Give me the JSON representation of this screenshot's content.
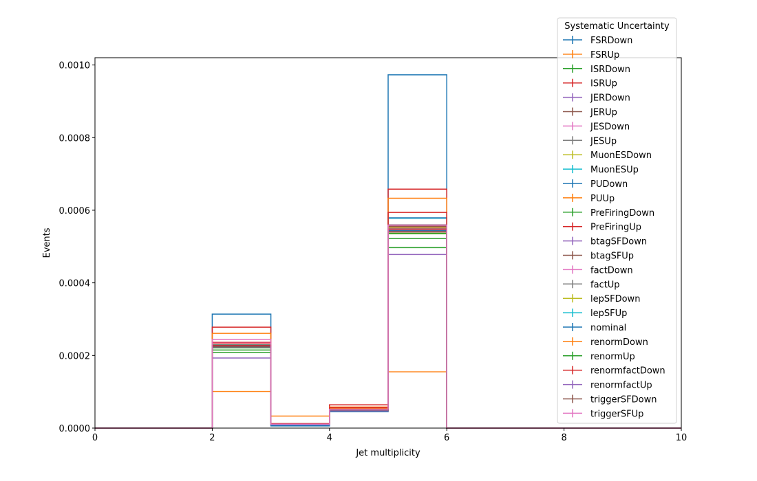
{
  "chart_data": {
    "type": "step-histogram",
    "title": "",
    "xlabel": "Jet multiplicity",
    "ylabel": "Events",
    "xlim": [
      0,
      10
    ],
    "ylim": [
      0,
      0.00102
    ],
    "x_ticks": [
      0,
      2,
      4,
      6,
      8,
      10
    ],
    "y_ticks": [
      0.0,
      0.0002,
      0.0004,
      0.0006,
      0.0008,
      0.001
    ],
    "y_tick_labels": [
      "0.0000",
      "0.0002",
      "0.0004",
      "0.0006",
      "0.0008",
      "0.0010"
    ],
    "grid": false,
    "bin_edges": [
      0,
      1,
      2,
      3,
      4,
      5,
      6,
      7,
      8,
      9,
      10
    ],
    "legend": {
      "title": "Systematic Uncertainty",
      "placement": "upper right"
    },
    "series": [
      {
        "name": "FSRDown",
        "color": "#1f77b4",
        "values": [
          0,
          0,
          0.000314,
          8e-06,
          4.5e-05,
          0.000973,
          0,
          0,
          0,
          0
        ]
      },
      {
        "name": "FSRUp",
        "color": "#ff7f0e",
        "values": [
          0,
          0,
          0.000101,
          3.3e-05,
          5.2e-05,
          0.000155,
          0,
          0,
          0,
          0
        ]
      },
      {
        "name": "ISRDown",
        "color": "#2ca02c",
        "values": [
          0,
          0,
          0.000208,
          1.2e-05,
          4.8e-05,
          0.000497,
          0,
          0,
          0,
          0
        ]
      },
      {
        "name": "ISRUp",
        "color": "#d62728",
        "values": [
          0,
          0,
          0.000278,
          1.1e-05,
          6.4e-05,
          0.000658,
          0,
          0,
          0,
          0
        ]
      },
      {
        "name": "JERDown",
        "color": "#9467bd",
        "values": [
          0,
          0,
          0.000193,
          1e-05,
          4.7e-05,
          0.000478,
          0,
          0,
          0,
          0
        ]
      },
      {
        "name": "JERUp",
        "color": "#8c564b",
        "values": [
          0,
          0,
          0.000222,
          1.1e-05,
          5e-05,
          0.000556,
          0,
          0,
          0,
          0
        ]
      },
      {
        "name": "JESDown",
        "color": "#e377c2",
        "values": [
          0,
          0,
          0.000232,
          1.1e-05,
          5.1e-05,
          0.000545,
          0,
          0,
          0,
          0
        ]
      },
      {
        "name": "JESUp",
        "color": "#7f7f7f",
        "values": [
          0,
          0,
          0.000228,
          1.2e-05,
          4.9e-05,
          0.00056,
          0,
          0,
          0,
          0
        ]
      },
      {
        "name": "MuonESDown",
        "color": "#bcbd22",
        "values": [
          0,
          0,
          0.000226,
          1.1e-05,
          5e-05,
          0.000537,
          0,
          0,
          0,
          0
        ]
      },
      {
        "name": "MuonESUp",
        "color": "#17becf",
        "values": [
          0,
          0,
          0.000229,
          1.1e-05,
          5.1e-05,
          0.000578,
          0,
          0,
          0,
          0
        ]
      },
      {
        "name": "PUDown",
        "color": "#1f77b4",
        "values": [
          0,
          0,
          0.000236,
          6e-06,
          4.9e-05,
          0.000579,
          0,
          0,
          0,
          0
        ]
      },
      {
        "name": "PUUp",
        "color": "#ff7f0e",
        "values": [
          0,
          0,
          0.000261,
          1.1e-05,
          5.8e-05,
          0.000633,
          0,
          0,
          0,
          0
        ]
      },
      {
        "name": "PreFiringDown",
        "color": "#2ca02c",
        "values": [
          0,
          0,
          0.000215,
          1.1e-05,
          4.9e-05,
          0.000522,
          0,
          0,
          0,
          0
        ]
      },
      {
        "name": "PreFiringUp",
        "color": "#d62728",
        "values": [
          0,
          0,
          0.000236,
          1.1e-05,
          5.6e-05,
          0.000594,
          0,
          0,
          0,
          0
        ]
      },
      {
        "name": "btagSFDown",
        "color": "#9467bd",
        "values": [
          0,
          0,
          0.000225,
          1.1e-05,
          5e-05,
          0.00054,
          0,
          0,
          0,
          0
        ]
      },
      {
        "name": "btagSFUp",
        "color": "#8c564b",
        "values": [
          0,
          0,
          0.000221,
          1.1e-05,
          5e-05,
          0.000548,
          0,
          0,
          0,
          0
        ]
      },
      {
        "name": "factDown",
        "color": "#e377c2",
        "values": [
          0,
          0,
          0.000244,
          1.2e-05,
          5.3e-05,
          0.000559,
          0,
          0,
          0,
          0
        ]
      },
      {
        "name": "factUp",
        "color": "#7f7f7f",
        "values": [
          0,
          0,
          0.000226,
          1.1e-05,
          5e-05,
          0.000549,
          0,
          0,
          0,
          0
        ]
      },
      {
        "name": "lepSFDown",
        "color": "#bcbd22",
        "values": [
          0,
          0,
          0.000222,
          1.1e-05,
          4.9e-05,
          0.000535,
          0,
          0,
          0,
          0
        ]
      },
      {
        "name": "lepSFUp",
        "color": "#17becf",
        "values": [
          0,
          0,
          0.00023,
          1.1e-05,
          5.1e-05,
          0.000552,
          0,
          0,
          0,
          0
        ]
      },
      {
        "name": "nominal",
        "color": "#1f77b4",
        "values": [
          0,
          0,
          0.000226,
          1.1e-05,
          5e-05,
          0.000544,
          0,
          0,
          0,
          0
        ]
      },
      {
        "name": "renormDown",
        "color": "#ff7f0e",
        "values": [
          0,
          0,
          0.000232,
          1.2e-05,
          5.4e-05,
          0.000553,
          0,
          0,
          0,
          0
        ]
      },
      {
        "name": "renormUp",
        "color": "#2ca02c",
        "values": [
          0,
          0,
          0.000221,
          1e-05,
          4.8e-05,
          0.000536,
          0,
          0,
          0,
          0
        ]
      },
      {
        "name": "renormfactDown",
        "color": "#d62728",
        "values": [
          0,
          0,
          0.000228,
          1.2e-05,
          5.6e-05,
          0.000548,
          0,
          0,
          0,
          0
        ]
      },
      {
        "name": "renormfactUp",
        "color": "#9467bd",
        "values": [
          0,
          0,
          0.000223,
          1e-05,
          4.8e-05,
          0.000541,
          0,
          0,
          0,
          0
        ]
      },
      {
        "name": "triggerSFDown",
        "color": "#8c564b",
        "values": [
          0,
          0,
          0.000224,
          1.1e-05,
          5e-05,
          0.000542,
          0,
          0,
          0,
          0
        ]
      },
      {
        "name": "triggerSFUp",
        "color": "#e377c2",
        "values": [
          0,
          0,
          0.000234,
          1.1e-05,
          5.2e-05,
          0.000559,
          0,
          0,
          0,
          0
        ]
      }
    ]
  }
}
